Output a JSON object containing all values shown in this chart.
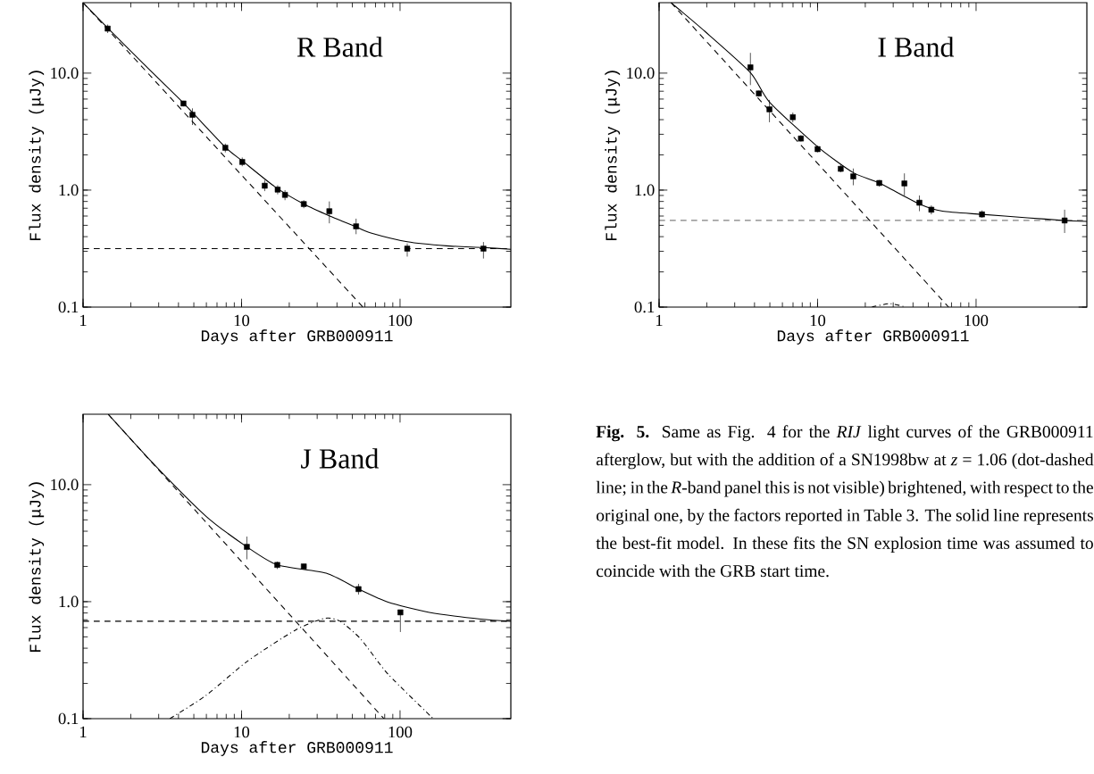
{
  "chart_data": [
    {
      "type": "line",
      "title": "R Band",
      "xlabel": "Days after GRB000911",
      "ylabel": "Flux density (μJy)",
      "log": "xy",
      "xlim": [
        1,
        500
      ],
      "ylim": [
        0.1,
        40
      ],
      "xticks": [
        1,
        10,
        100
      ],
      "yticks": [
        {
          "value": 0.1,
          "label": "0.1"
        },
        {
          "value": 1,
          "label": "1.0"
        },
        {
          "value": 10,
          "label": "10.0"
        }
      ],
      "series": [
        {
          "type": "scatter",
          "marker": "square",
          "color": "#000000",
          "x": [
            1.43,
            4.3,
            4.9,
            7.9,
            10.1,
            14.0,
            16.9,
            18.8,
            24.7,
            35.8,
            52.8,
            111,
            336
          ],
          "values": [
            24,
            5.5,
            4.4,
            2.3,
            1.74,
            1.09,
            1.01,
            0.91,
            0.76,
            0.66,
            0.49,
            0.316,
            0.316
          ],
          "errors": [
            [
              22,
              26
            ],
            [
              5.2,
              5.8
            ],
            [
              3.6,
              5.0
            ],
            [
              2.1,
              2.5
            ],
            [
              1.6,
              1.9
            ],
            [
              0.98,
              1.22
            ],
            [
              0.92,
              1.1
            ],
            [
              0.82,
              1.0
            ],
            [
              0.7,
              0.82
            ],
            [
              0.52,
              0.8
            ],
            [
              0.42,
              0.57
            ],
            [
              0.27,
              0.35
            ],
            [
              0.26,
              0.36
            ]
          ]
        },
        {
          "line_style": "solid",
          "color": "#000000",
          "x": [
            1,
            1.43,
            2.55,
            4.27,
            7.9,
            10.1,
            16.2,
            24.7,
            36,
            52.8,
            65.5,
            111,
            196,
            336,
            500
          ],
          "values": [
            40,
            24.3,
            11.1,
            5.6,
            2.33,
            1.78,
            1.07,
            0.76,
            0.6,
            0.485,
            0.43,
            0.362,
            0.334,
            0.323,
            0.312
          ]
        },
        {
          "line_style": "dashed",
          "color": "#000000",
          "x": [
            1,
            58.3
          ],
          "values": [
            40,
            0.1
          ]
        }
      ],
      "ref_lines": [
        {
          "axis": "y",
          "value": 0.316,
          "line_style": "dashed",
          "color": "#000000"
        }
      ]
    },
    {
      "type": "line",
      "title": "I Band",
      "xlabel": "Days after GRB000911",
      "ylabel": "Flux density (μJy)",
      "log": "xy",
      "xlim": [
        1,
        500
      ],
      "ylim": [
        0.1,
        40
      ],
      "xticks": [
        1,
        10,
        100
      ],
      "yticks": [
        {
          "value": 0.1,
          "label": "0.1"
        },
        {
          "value": 1,
          "label": "1.0"
        },
        {
          "value": 10,
          "label": "10.0"
        }
      ],
      "series": [
        {
          "type": "scatter",
          "marker": "square",
          "color": "#000000",
          "x": [
            3.77,
            4.26,
            4.97,
            6.98,
            7.85,
            10.0,
            14.0,
            16.8,
            24.5,
            35.3,
            43.9,
            52.2,
            109,
            362
          ],
          "values": [
            11.2,
            6.7,
            4.9,
            4.2,
            2.76,
            2.24,
            1.52,
            1.31,
            1.15,
            1.14,
            0.78,
            0.68,
            0.62,
            0.55
          ],
          "errors": [
            [
              7.9,
              14.9
            ],
            [
              6.3,
              7.1
            ],
            [
              3.8,
              5.9
            ],
            [
              3.8,
              4.6
            ],
            [
              2.6,
              2.95
            ],
            [
              2.1,
              2.4
            ],
            [
              1.42,
              1.65
            ],
            [
              1.1,
              1.53
            ],
            [
              1.07,
              1.22
            ],
            [
              0.9,
              1.39
            ],
            [
              0.66,
              0.9
            ],
            [
              0.62,
              0.74
            ],
            [
              0.58,
              0.67
            ],
            [
              0.43,
              0.68
            ]
          ]
        },
        {
          "line_style": "solid",
          "color": "#000000",
          "x": [
            1.19,
            1.95,
            3.77,
            4.97,
            10,
            16.8,
            24.5,
            43.9,
            61.4,
            109,
            211,
            362,
            500
          ],
          "values": [
            40,
            22.7,
            10.1,
            5.66,
            2.35,
            1.41,
            1.15,
            0.76,
            0.66,
            0.62,
            0.58,
            0.55,
            0.54
          ]
        },
        {
          "line_style": "dashed",
          "color": "#000000",
          "x": [
            1.19,
            67.1
          ],
          "values": [
            40,
            0.1
          ]
        },
        {
          "line_style": "dashdot",
          "color": "#000000",
          "x": [
            22,
            28.6,
            36
          ],
          "values": [
            0.1,
            0.107,
            0.1
          ]
        }
      ],
      "ref_lines": [
        {
          "axis": "y",
          "value": 0.55,
          "line_style": "dashed",
          "color": "#000000"
        }
      ]
    },
    {
      "type": "line",
      "title": "J Band",
      "xlabel": "Days after GRB000911",
      "ylabel": "Flux density (μJy)",
      "log": "xy",
      "xlim": [
        1,
        500
      ],
      "ylim": [
        0.1,
        40
      ],
      "xticks": [
        1,
        10,
        100
      ],
      "yticks": [
        {
          "value": 0.1,
          "label": "0.1"
        },
        {
          "value": 1,
          "label": "1.0"
        },
        {
          "value": 10,
          "label": "10.0"
        }
      ],
      "series": [
        {
          "type": "scatter",
          "marker": "square",
          "color": "#000000",
          "x": [
            10.8,
            16.8,
            24.7,
            54.7,
            100.5
          ],
          "values": [
            2.94,
            2.06,
            2.0,
            1.28,
            0.81
          ],
          "errors": [
            [
              2.3,
              3.6
            ],
            [
              1.9,
              2.2
            ],
            [
              1.9,
              2.1
            ],
            [
              1.15,
              1.42
            ],
            [
              0.55,
              0.81
            ]
          ]
        },
        {
          "line_style": "solid",
          "color": "#000000",
          "x": [
            1.44,
            2.82,
            5.97,
            10.8,
            16.8,
            34.2,
            54.7,
            84,
            153,
            323,
            500
          ],
          "values": [
            40,
            14.8,
            5.37,
            2.94,
            2.06,
            1.75,
            1.28,
            0.99,
            0.81,
            0.71,
            0.68
          ]
        },
        {
          "line_style": "dashed",
          "color": "#000000",
          "x": [
            1.44,
            79.1
          ],
          "values": [
            40,
            0.1
          ]
        },
        {
          "line_style": "dashdot",
          "color": "#000000",
          "x": [
            3.53,
            5.97,
            10.9,
            21.8,
            33.4,
            41.8,
            56.4,
            84,
            162
          ],
          "values": [
            0.1,
            0.158,
            0.31,
            0.57,
            0.72,
            0.68,
            0.48,
            0.24,
            0.1
          ]
        }
      ],
      "ref_lines": [
        {
          "axis": "y",
          "value": 0.68,
          "line_style": "dashed",
          "color": "#000000"
        }
      ],
      "annotations": [
        "**Fig. 5.** Same as Fig. 4 for the *RIJ* light curves of the GRB000911 afterglow, but with the addition of a SN1998bw at *z* = 1.06 (dot-dashed line; in the *R*-band panel this is not visible) brightened, with respect to the original one, by the factors reported in Table 3. The solid line represents the best-fit model. In these fits the SN explosion time was assumed to coincide with the GRB start time."
      ]
    }
  ]
}
